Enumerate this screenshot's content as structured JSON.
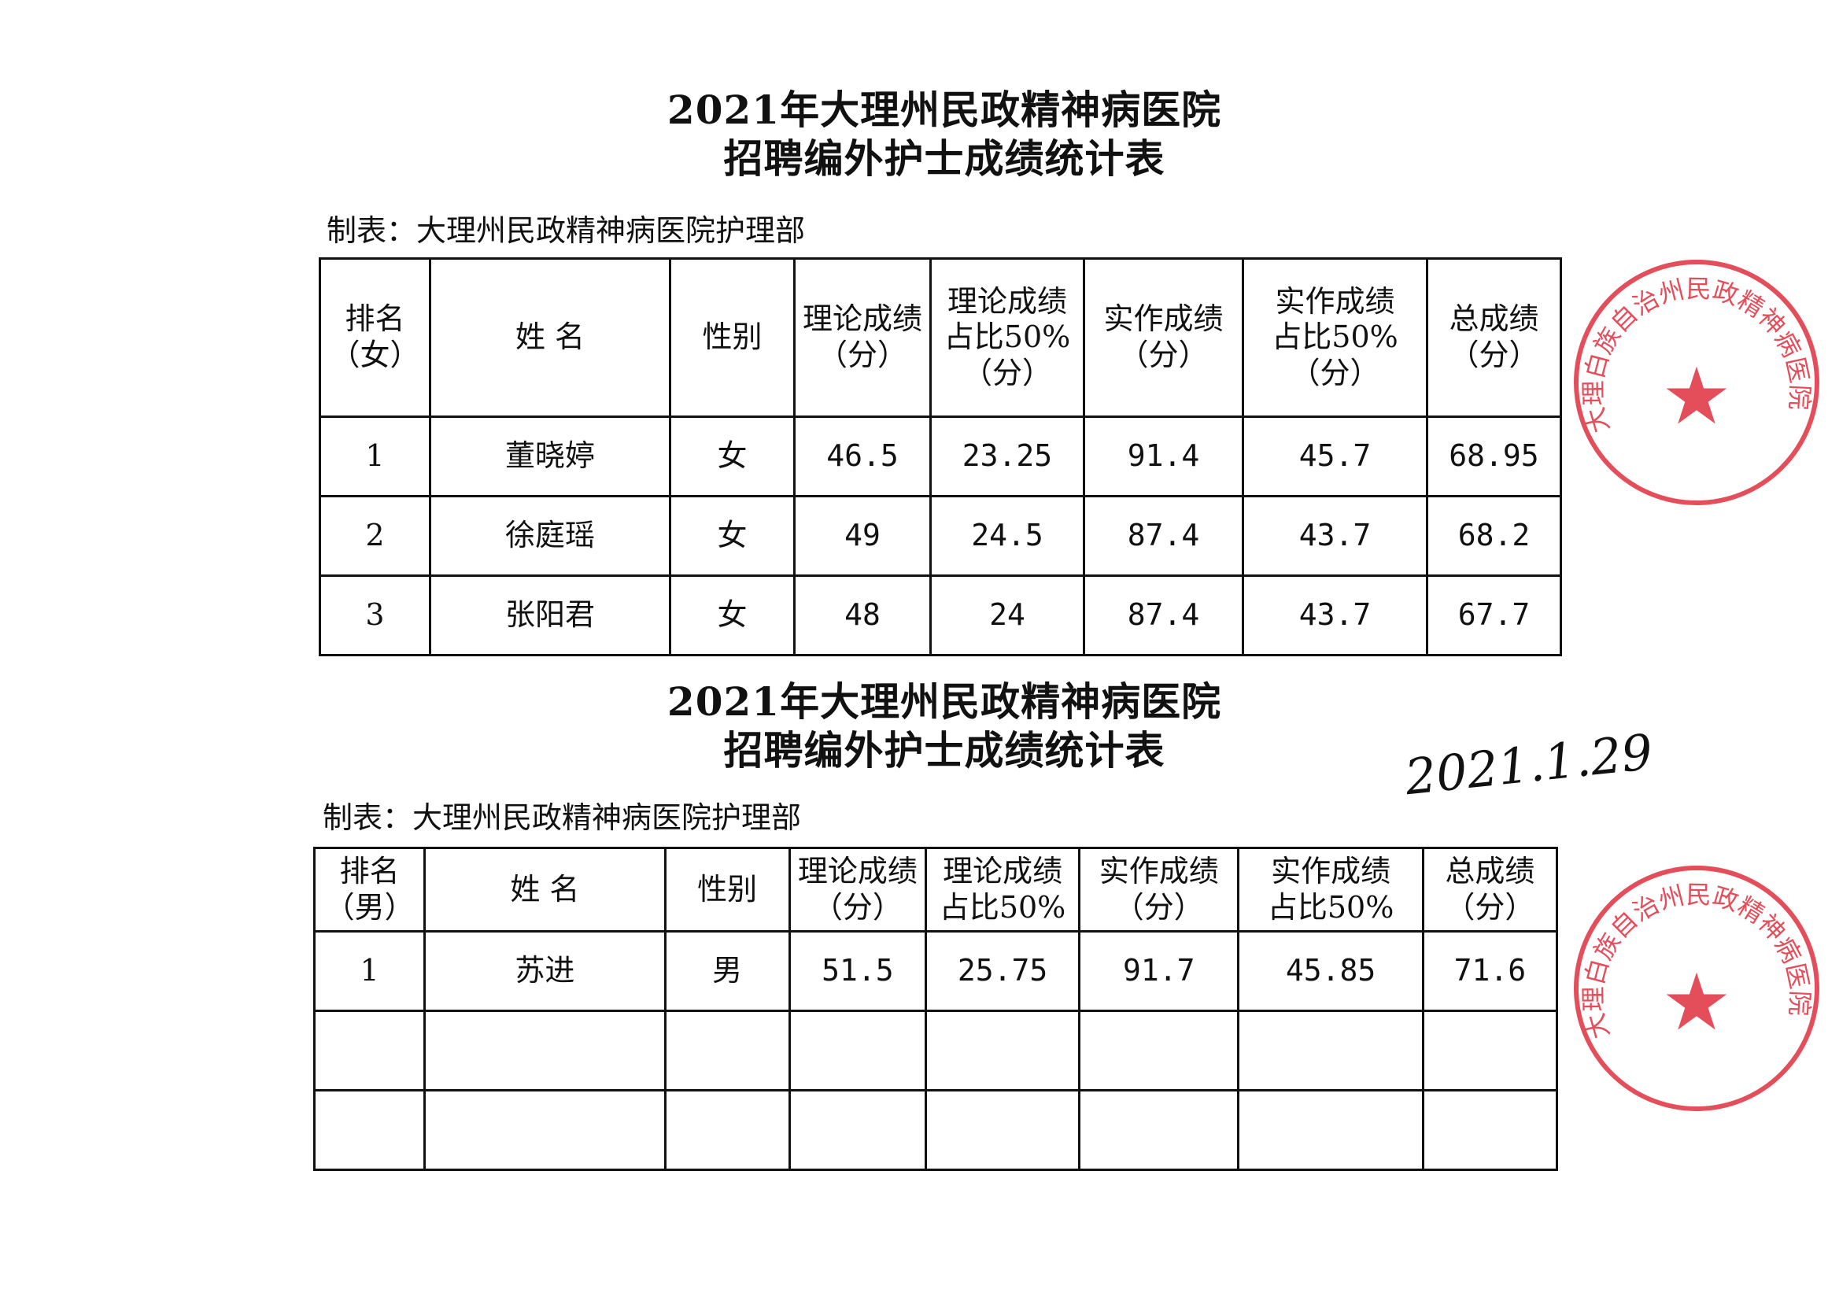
{
  "sections": [
    {
      "title_line1": "2021年大理州民政精神病医院",
      "title_line2": "招聘编外护士成绩统计表",
      "maker": "制表：大理州民政精神病医院护理部",
      "headers": [
        "排名\n（女）",
        "姓 名",
        "性别",
        "理论成绩\n（分）",
        "理论成绩\n占比50%\n（分）",
        "实作成绩\n（分）",
        "实作成绩\n占比50%\n（分）",
        "总成绩\n（分）"
      ],
      "rows": [
        [
          "1",
          "董晓婷",
          "女",
          "46.5",
          "23.25",
          "91.4",
          "45.7",
          "68.95"
        ],
        [
          "2",
          "徐庭瑶",
          "女",
          "49",
          "24.5",
          "87.4",
          "43.7",
          "68.2"
        ],
        [
          "3",
          "张阳君",
          "女",
          "48",
          "24",
          "87.4",
          "43.7",
          "67.7"
        ]
      ]
    },
    {
      "title_line1": "2021年大理州民政精神病医院",
      "title_line2": "招聘编外护士成绩统计表",
      "maker": "制表：大理州民政精神病医院护理部",
      "headers": [
        "排名\n（男）",
        "姓 名",
        "性别",
        "理论成绩\n（分）",
        "理论成绩\n占比50%",
        "实作成绩\n（分）",
        "实作成绩\n占比50%",
        "总成绩\n（分）"
      ],
      "rows": [
        [
          "1",
          "苏进",
          "男",
          "51.5",
          "25.75",
          "91.7",
          "45.85",
          "71.6"
        ],
        [
          "",
          "",
          "",
          "",
          "",
          "",
          "",
          ""
        ],
        [
          "",
          "",
          "",
          "",
          "",
          "",
          "",
          ""
        ]
      ]
    }
  ],
  "stamp_text": "大理白族自治州民政精神病医院",
  "stamp_color": "#e0303e",
  "signature": "2021.1.29"
}
